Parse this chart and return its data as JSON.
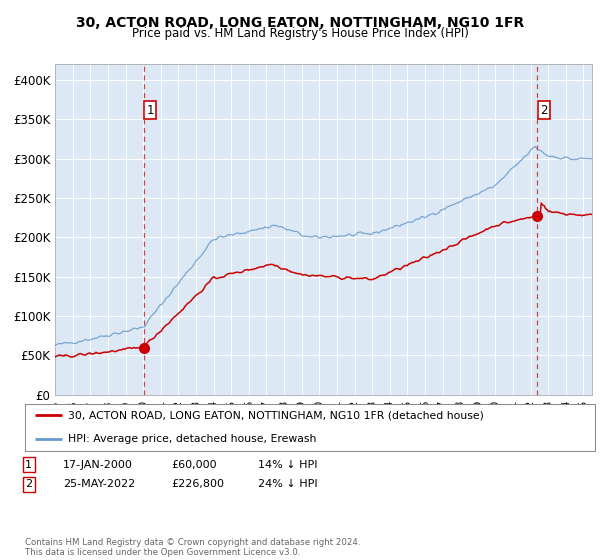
{
  "title": "30, ACTON ROAD, LONG EATON, NOTTINGHAM, NG10 1FR",
  "subtitle": "Price paid vs. HM Land Registry's House Price Index (HPI)",
  "ylim": [
    0,
    420000
  ],
  "yticks": [
    0,
    50000,
    100000,
    150000,
    200000,
    250000,
    300000,
    350000,
    400000
  ],
  "ytick_labels": [
    "£0",
    "£50K",
    "£100K",
    "£150K",
    "£200K",
    "£250K",
    "£300K",
    "£350K",
    "£400K"
  ],
  "plot_bg_color": "#dce9f5",
  "red_line_color": "#cc0000",
  "blue_line_color": "#6699cc",
  "marker1_x": 2000.04,
  "marker1_y": 60000,
  "marker2_x": 2022.39,
  "marker2_y": 226800,
  "vline1_x": 2000.04,
  "vline2_x": 2022.39,
  "legend_red": "30, ACTON ROAD, LONG EATON, NOTTINGHAM, NG10 1FR (detached house)",
  "legend_blue": "HPI: Average price, detached house, Erewash",
  "note1_date": "17-JAN-2000",
  "note1_price": "£60,000",
  "note1_pct": "14% ↓ HPI",
  "note2_date": "25-MAY-2022",
  "note2_price": "£226,800",
  "note2_pct": "24% ↓ HPI",
  "footer": "Contains HM Land Registry data © Crown copyright and database right 2024.\nThis data is licensed under the Open Government Licence v3.0.",
  "xmin": 1995.0,
  "xmax": 2025.5
}
